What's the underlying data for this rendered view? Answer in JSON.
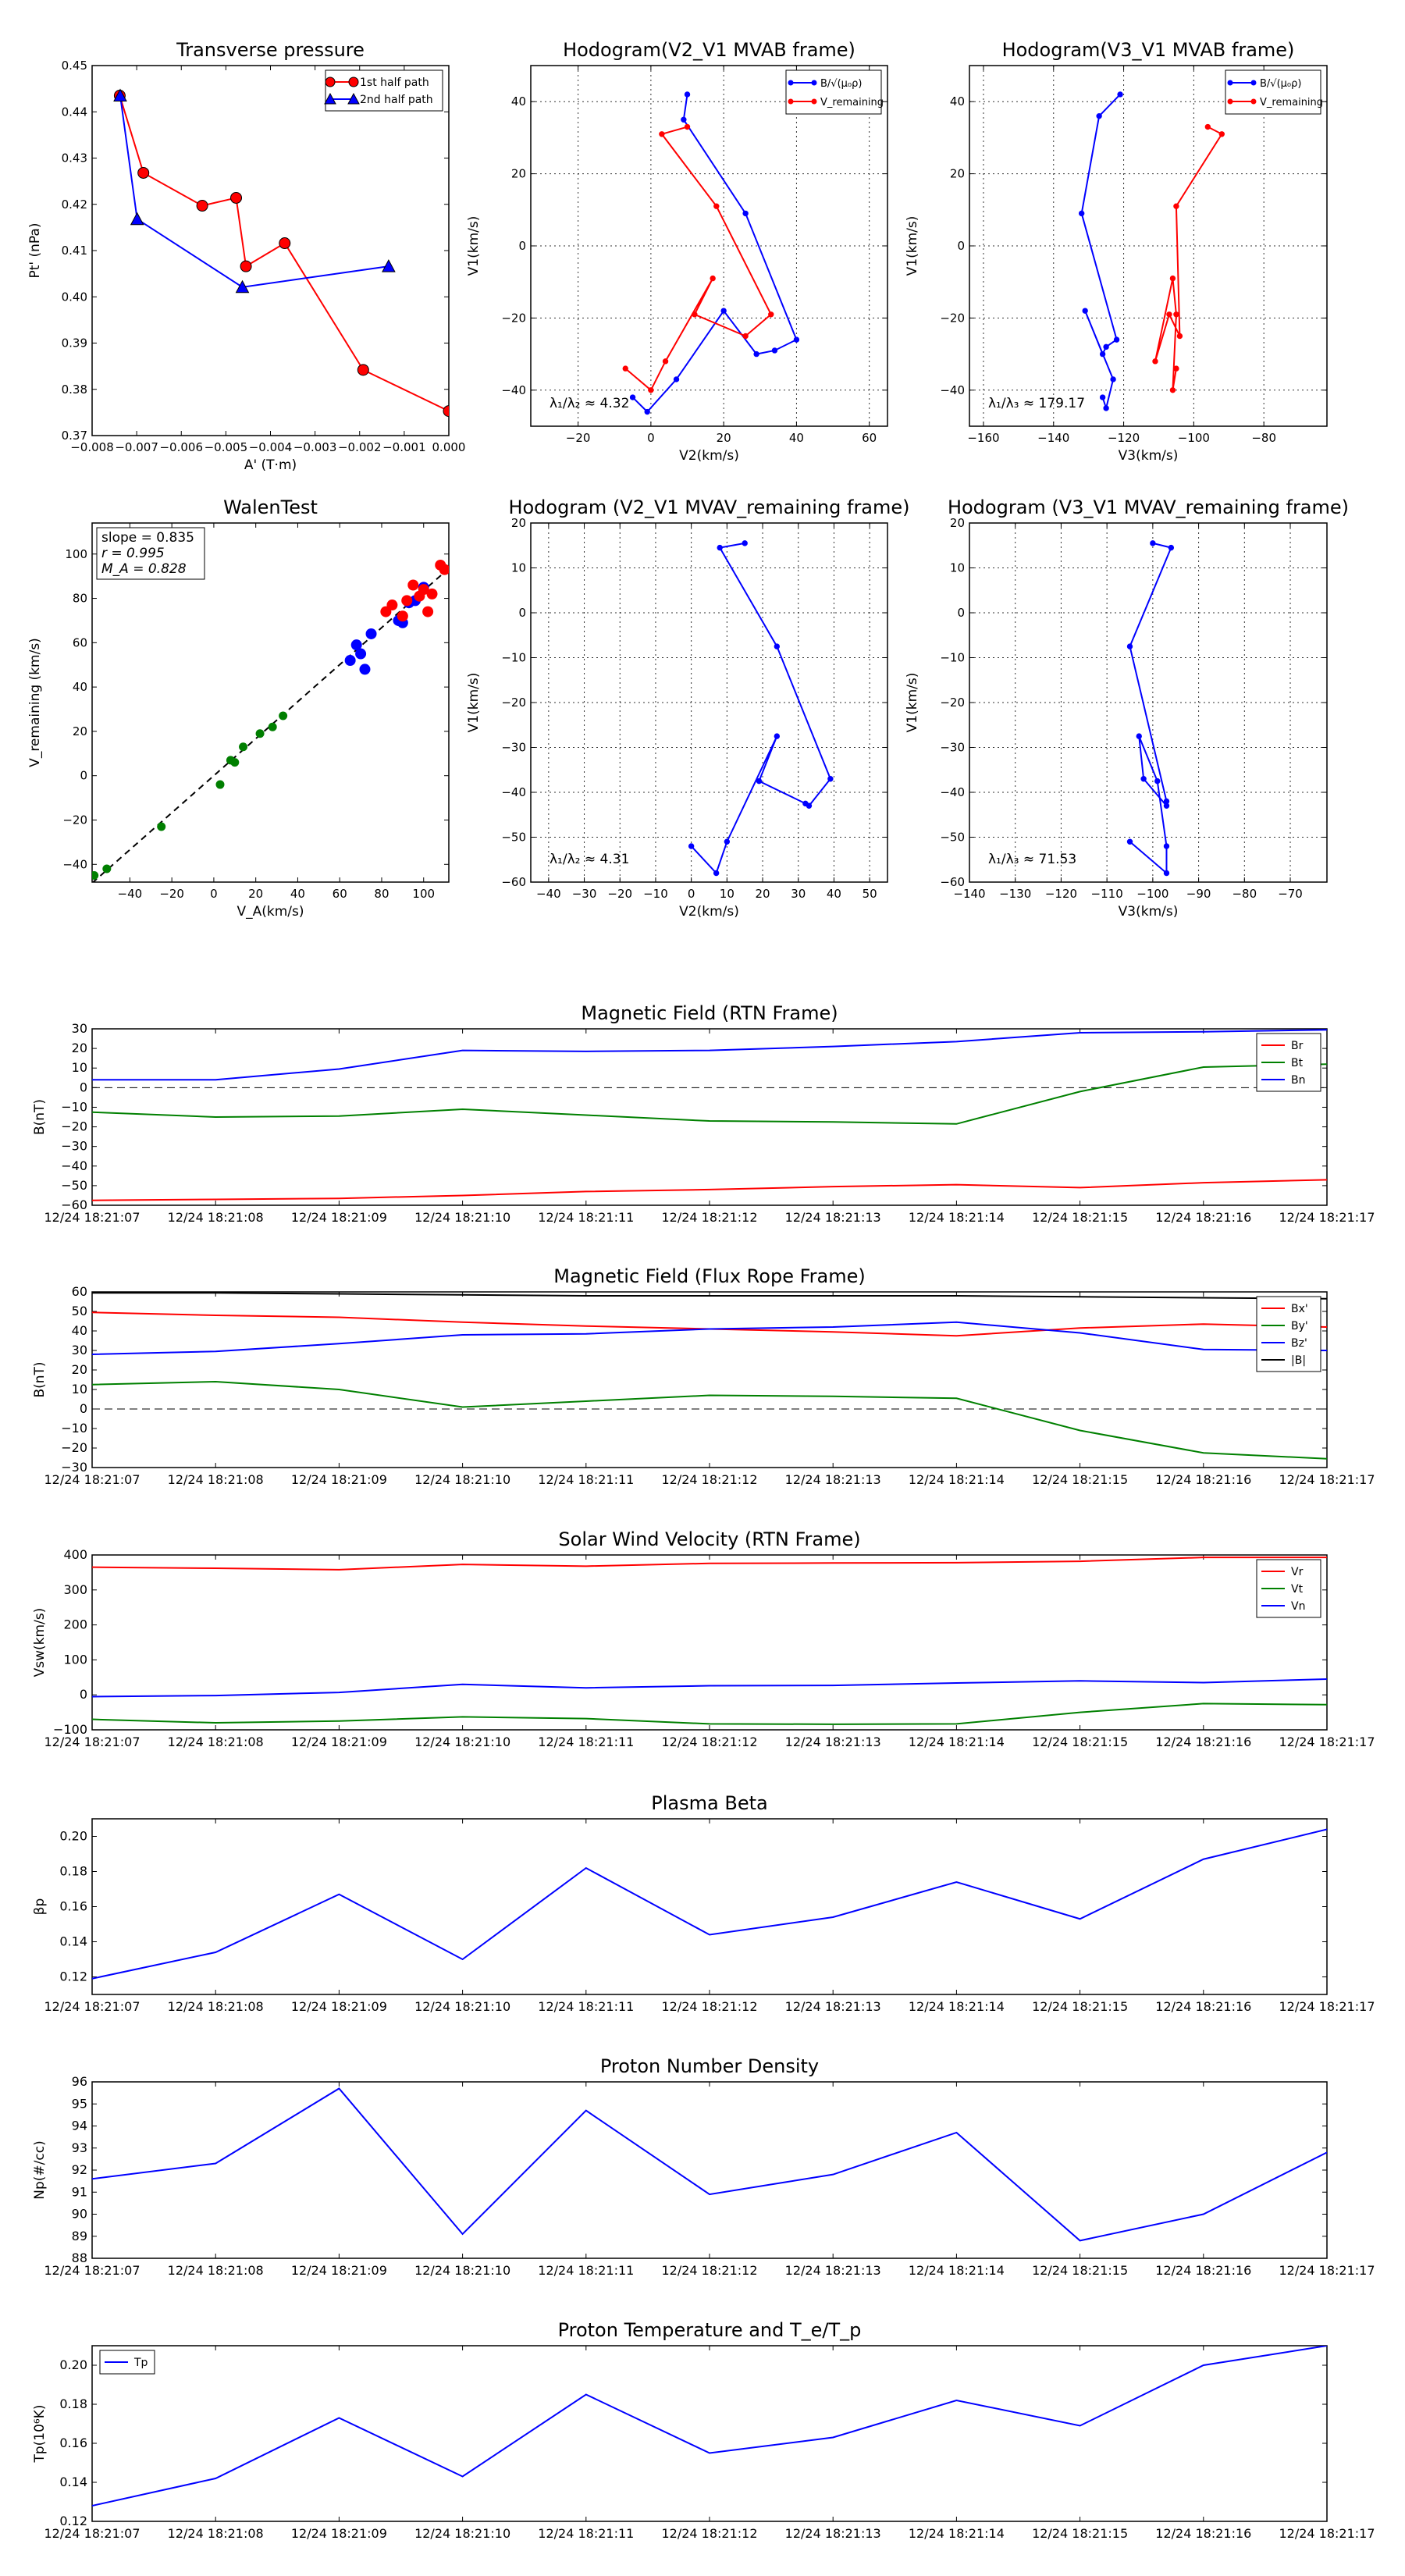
{
  "chart_data": [
    {
      "id": "tp",
      "type": "line",
      "title": "Transverse pressure",
      "xlabel": "A' (T·m)",
      "ylabel": "Pt' (nPa)",
      "xlim": [
        -0.008,
        0.0
      ],
      "ylim": [
        0.37,
        0.45
      ],
      "xticks": [
        -0.008,
        -0.007,
        -0.006,
        -0.005,
        -0.004,
        -0.003,
        -0.002,
        -0.001,
        0.0
      ],
      "xticklabels": [
        "−0.008",
        "−0.007",
        "−0.006",
        "−0.005",
        "−0.004",
        "−0.003",
        "−0.002",
        "−0.001",
        "0.000"
      ],
      "yticks": [
        0.37,
        0.38,
        0.39,
        0.4,
        0.41,
        0.42,
        0.43,
        0.44,
        0.45
      ],
      "yticklabels": [
        "0.37",
        "0.38",
        "0.39",
        "0.40",
        "0.41",
        "0.42",
        "0.43",
        "0.44",
        "0.45"
      ],
      "grid": false,
      "legend": "top-right",
      "series": [
        {
          "name": "1st half path",
          "color": "#ff0000",
          "marker": "circle",
          "x": [
            -0.00738,
            -0.00685,
            -0.00553,
            -0.00477,
            -0.00455,
            -0.00368,
            -0.00192,
            0.0
          ],
          "y": [
            0.4435,
            0.4268,
            0.4197,
            0.4214,
            0.4066,
            0.4116,
            0.3842,
            0.3753
          ]
        },
        {
          "name": "2nd half path",
          "color": "#0000ff",
          "marker": "triangle",
          "x": [
            -0.00737,
            -0.00699,
            -0.00463,
            -0.00135
          ],
          "y": [
            0.4435,
            0.4168,
            0.4021,
            0.4066
          ]
        }
      ]
    },
    {
      "id": "hodo1",
      "type": "line",
      "title": "Hodogram(V2_V1 MVAB frame)",
      "xlabel": "V2(km/s)",
      "ylabel": "V1(km/s)",
      "xlim": [
        -33,
        65
      ],
      "ylim": [
        -50,
        50
      ],
      "xticks": [
        -20,
        0,
        20,
        40,
        60
      ],
      "xticklabels": [
        "−20",
        "0",
        "20",
        "40",
        "60"
      ],
      "yticks": [
        -40,
        -20,
        0,
        20,
        40
      ],
      "yticklabels": [
        "−40",
        "−20",
        "0",
        "20",
        "40"
      ],
      "grid": true,
      "legend": "top-right",
      "annotation": "λ₁/λ₂ ≈ 4.32",
      "series": [
        {
          "name": "B/√(μ₀ρ)",
          "color": "#0000ff",
          "x": [
            10,
            9,
            26,
            40,
            34,
            29,
            20,
            7,
            -1,
            -5
          ],
          "y": [
            42,
            35,
            9,
            -26,
            -29,
            -30,
            -18,
            -37,
            -46,
            -42
          ]
        },
        {
          "name": "V_remaining",
          "color": "#ff0000",
          "x": [
            10,
            3,
            18,
            33,
            26,
            12,
            17,
            4,
            0,
            -7
          ],
          "y": [
            33,
            31,
            11,
            -19,
            -25,
            -19,
            -9,
            -32,
            -40,
            -34
          ]
        }
      ]
    },
    {
      "id": "hodo2",
      "type": "line",
      "title": "Hodogram(V3_V1 MVAB frame)",
      "xlabel": "V3(km/s)",
      "ylabel": "V1(km/s)",
      "xlim": [
        -164,
        -62
      ],
      "ylim": [
        -50,
        50
      ],
      "xticks": [
        -160,
        -140,
        -120,
        -100,
        -80
      ],
      "xticklabels": [
        "−160",
        "−140",
        "−120",
        "−100",
        "−80"
      ],
      "yticks": [
        -40,
        -20,
        0,
        20,
        40
      ],
      "yticklabels": [
        "−40",
        "−20",
        "0",
        "20",
        "40"
      ],
      "grid": true,
      "legend": "top-right",
      "annotation": "λ₁/λ₃ ≈ 179.17",
      "series": [
        {
          "name": "B/√(μ₀ρ)",
          "color": "#0000ff",
          "x": [
            -121,
            -127,
            -132,
            -122,
            -125,
            -126,
            -131,
            -123,
            -125,
            -126
          ],
          "y": [
            42,
            36,
            9,
            -26,
            -28,
            -30,
            -18,
            -37,
            -45,
            -42
          ]
        },
        {
          "name": "V_remaining",
          "color": "#ff0000",
          "x": [
            -96,
            -92,
            -105,
            -104,
            -107,
            -111,
            -106,
            -105,
            -106,
            -105
          ],
          "y": [
            33,
            31,
            11,
            -25,
            -19,
            -32,
            -9,
            -19,
            -40,
            -34
          ]
        }
      ]
    },
    {
      "id": "walen",
      "type": "scatter",
      "title": "WalenTest",
      "xlabel": "V_A(km/s)",
      "ylabel": "V_remaining (km/s)",
      "xlim": [
        -58,
        112
      ],
      "ylim": [
        -48,
        114
      ],
      "xticks": [
        -40,
        -20,
        0,
        20,
        40,
        60,
        80,
        100
      ],
      "xticklabels": [
        "−40",
        "−20",
        "0",
        "20",
        "40",
        "60",
        "80",
        "100"
      ],
      "yticks": [
        -40,
        -20,
        0,
        20,
        40,
        60,
        80,
        100
      ],
      "yticklabels": [
        "−40",
        "−20",
        "0",
        "20",
        "40",
        "60",
        "80",
        "100"
      ],
      "grid": false,
      "stats": [
        "slope = 0.835",
        "r = 0.995",
        "M_A = 0.828"
      ],
      "fit_line": {
        "slope": 0.835,
        "intercept": 0
      },
      "series": [
        {
          "name": "green",
          "color": "#007f00",
          "x": [
            -57,
            -51,
            -25,
            3,
            8,
            10,
            14,
            22,
            28,
            33
          ],
          "y": [
            -45,
            -42,
            -23,
            -4,
            7,
            6,
            13,
            19,
            22,
            27
          ]
        },
        {
          "name": "blue",
          "color": "#0000ff",
          "x": [
            65,
            68,
            70,
            72,
            75,
            88,
            90,
            93,
            96,
            100
          ],
          "y": [
            52,
            59,
            55,
            48,
            64,
            70,
            69,
            78,
            79,
            85
          ]
        },
        {
          "name": "red",
          "color": "#ff0000",
          "x": [
            82,
            85,
            90,
            92,
            95,
            98,
            100,
            102,
            104,
            108,
            110
          ],
          "y": [
            74,
            77,
            72,
            79,
            86,
            81,
            84,
            74,
            82,
            95,
            93
          ]
        }
      ]
    },
    {
      "id": "hodo3",
      "type": "line",
      "title": "Hodogram (V2_V1 MVAV_remaining frame)",
      "xlabel": "V2(km/s)",
      "ylabel": "V1(km/s)",
      "xlim": [
        -45,
        55
      ],
      "ylim": [
        -60,
        20
      ],
      "xticks": [
        -40,
        -30,
        -20,
        -10,
        0,
        10,
        20,
        30,
        40,
        50
      ],
      "xticklabels": [
        "−40",
        "−30",
        "−20",
        "−10",
        "0",
        "10",
        "20",
        "30",
        "40",
        "50"
      ],
      "yticks": [
        -60,
        -50,
        -40,
        -30,
        -20,
        -10,
        0,
        10,
        20
      ],
      "yticklabels": [
        "−60",
        "−50",
        "−40",
        "−30",
        "−20",
        "−10",
        "0",
        "10",
        "20"
      ],
      "grid": true,
      "annotation": "λ₁/λ₂ ≈ 4.31",
      "series": [
        {
          "name": "",
          "color": "#0000ff",
          "x": [
            15,
            8,
            24,
            39,
            33,
            32,
            19,
            24,
            10,
            7,
            0
          ],
          "y": [
            15.5,
            14.5,
            -7.5,
            -37,
            -43,
            -42.5,
            -37.5,
            -27.5,
            -51,
            -58,
            -52
          ]
        }
      ]
    },
    {
      "id": "hodo4",
      "type": "line",
      "title": "Hodogram (V3_V1 MVAV_remaining frame)",
      "xlabel": "V3(km/s)",
      "ylabel": "V1(km/s)",
      "xlim": [
        -140,
        -62
      ],
      "ylim": [
        -60,
        20
      ],
      "xticks": [
        -140,
        -130,
        -120,
        -110,
        -100,
        -90,
        -80,
        -70
      ],
      "xticklabels": [
        "−140",
        "−130",
        "−120",
        "−110",
        "−100",
        "−90",
        "−80",
        "−70"
      ],
      "yticks": [
        -60,
        -50,
        -40,
        -30,
        -20,
        -10,
        0,
        10,
        20
      ],
      "yticklabels": [
        "−60",
        "−50",
        "−40",
        "−30",
        "−20",
        "−10",
        "0",
        "10",
        "20"
      ],
      "grid": true,
      "annotation": "λ₁/λ₃ ≈ 71.53",
      "series": [
        {
          "name": "",
          "color": "#0000ff",
          "x": [
            -100,
            -96,
            -105,
            -97,
            -97,
            -102,
            -103,
            -99,
            -97,
            -97,
            -105
          ],
          "y": [
            15.5,
            14.5,
            -7.5,
            -42,
            -43,
            -37,
            -27.5,
            -37.5,
            -52,
            -58,
            -51
          ]
        }
      ]
    },
    {
      "id": "bfield_rtn",
      "type": "line",
      "title": "Magnetic Field (RTN Frame)",
      "ylabel": "B(nT)",
      "ylim": [
        -60,
        30
      ],
      "yticks": [
        -60,
        -50,
        -40,
        -30,
        -20,
        -10,
        0,
        10,
        20,
        30
      ],
      "yticklabels": [
        "−60",
        "−50",
        "−40",
        "−30",
        "−20",
        "−10",
        "0",
        "10",
        "20",
        "30"
      ],
      "zero_line": true,
      "legend": "top-right",
      "series": [
        {
          "name": "Br",
          "color": "#ff0000",
          "values": [
            -57.5,
            -57,
            -56.5,
            -55,
            -53,
            -52,
            -50.5,
            -49.5,
            -51,
            -48.5,
            -47
          ]
        },
        {
          "name": "Bt",
          "color": "#008000",
          "values": [
            -12.5,
            -15,
            -14.5,
            -11,
            -14,
            -17,
            -17.5,
            -18.5,
            -2,
            10.5,
            12
          ]
        },
        {
          "name": "Bn",
          "color": "#0000ff",
          "values": [
            4,
            4,
            9.5,
            19,
            18.5,
            19,
            21,
            23.5,
            28,
            28.5,
            29.5
          ]
        }
      ]
    },
    {
      "id": "bfield_fr",
      "type": "line",
      "title": "Magnetic Field (Flux Rope Frame)",
      "ylabel": "B(nT)",
      "ylim": [
        -30,
        60
      ],
      "yticks": [
        -30,
        -20,
        -10,
        0,
        10,
        20,
        30,
        40,
        50,
        60
      ],
      "yticklabels": [
        "−30",
        "−20",
        "−10",
        "0",
        "10",
        "20",
        "30",
        "40",
        "50",
        "60"
      ],
      "zero_line": true,
      "legend": "top-right",
      "series": [
        {
          "name": "Bx'",
          "color": "#ff0000",
          "values": [
            49.5,
            48,
            47,
            44.5,
            42.5,
            41,
            39.5,
            37.5,
            41.5,
            43.5,
            42
          ]
        },
        {
          "name": "By'",
          "color": "#008000",
          "values": [
            12.5,
            14,
            10,
            1,
            4,
            7,
            6.5,
            5.5,
            -11,
            -22.5,
            -25.5
          ]
        },
        {
          "name": "Bz'",
          "color": "#0000ff",
          "values": [
            28,
            29.5,
            33.5,
            38,
            38.5,
            41,
            42,
            44.5,
            39,
            30.5,
            30
          ]
        },
        {
          "name": "|B|",
          "color": "#000000",
          "values": [
            59.5,
            59.5,
            59,
            58.5,
            58,
            58,
            58,
            58,
            57.5,
            57,
            56.5
          ]
        }
      ]
    },
    {
      "id": "vsw",
      "type": "line",
      "title": "Solar Wind Velocity (RTN Frame)",
      "ylabel": "Vsw(km/s)",
      "ylim": [
        -100,
        400
      ],
      "yticks": [
        -100,
        0,
        100,
        200,
        300,
        400
      ],
      "yticklabels": [
        "−100",
        "0",
        "100",
        "200",
        "300",
        "400"
      ],
      "zero_line": false,
      "legend": "top-right",
      "series": [
        {
          "name": "Vr",
          "color": "#ff0000",
          "values": [
            365,
            362,
            358,
            373,
            368,
            376,
            377,
            378,
            382,
            393,
            393
          ]
        },
        {
          "name": "Vt",
          "color": "#008000",
          "values": [
            -70,
            -80,
            -75,
            -63,
            -68,
            -83,
            -84,
            -83,
            -50,
            -25,
            -28
          ]
        },
        {
          "name": "Vn",
          "color": "#0000ff",
          "values": [
            -5,
            -2,
            7,
            30,
            20,
            26,
            27,
            34,
            40,
            35,
            45
          ]
        }
      ]
    },
    {
      "id": "beta",
      "type": "line",
      "title": "Plasma Beta",
      "ylabel": "βp",
      "ylim": [
        0.11,
        0.21
      ],
      "yticks": [
        0.12,
        0.14,
        0.16,
        0.18,
        0.2
      ],
      "yticklabels": [
        "0.12",
        "0.14",
        "0.16",
        "0.18",
        "0.20"
      ],
      "series": [
        {
          "name": "βp",
          "color": "#0000ff",
          "values": [
            0.119,
            0.134,
            0.167,
            0.13,
            0.182,
            0.144,
            0.154,
            0.174,
            0.153,
            0.187,
            0.204
          ]
        }
      ]
    },
    {
      "id": "np",
      "type": "line",
      "title": "Proton Number Density",
      "ylabel": "Np(#/cc)",
      "ylim": [
        88,
        96
      ],
      "yticks": [
        88,
        89,
        90,
        91,
        92,
        93,
        94,
        95,
        96
      ],
      "yticklabels": [
        "88",
        "89",
        "90",
        "91",
        "92",
        "93",
        "94",
        "95",
        "96"
      ],
      "series": [
        {
          "name": "Np",
          "color": "#0000ff",
          "values": [
            91.6,
            92.3,
            95.7,
            89.1,
            94.7,
            90.9,
            91.8,
            93.7,
            88.8,
            90.0,
            92.8
          ]
        }
      ]
    },
    {
      "id": "tpr",
      "type": "line",
      "title": "Proton Temperature and T_e/T_p",
      "ylabel": "Tp(10⁶K)",
      "ylim": [
        0.12,
        0.21
      ],
      "yticks": [
        0.12,
        0.14,
        0.16,
        0.18,
        0.2
      ],
      "yticklabels": [
        "0.12",
        "0.14",
        "0.16",
        "0.18",
        "0.20"
      ],
      "legend": "top-left",
      "series": [
        {
          "name": "Tp",
          "color": "#0000ff",
          "values": [
            0.128,
            0.142,
            0.173,
            0.143,
            0.185,
            0.155,
            0.163,
            0.182,
            0.169,
            0.2,
            0.21
          ]
        }
      ]
    }
  ],
  "time_labels": [
    "12/24 18:21:07",
    "12/24 18:21:08",
    "12/24 18:21:09",
    "12/24 18:21:10",
    "12/24 18:21:11",
    "12/24 18:21:12",
    "12/24 18:21:13",
    "12/24 18:21:14",
    "12/24 18:21:15",
    "12/24 18:21:16",
    "12/24 18:21:17"
  ]
}
